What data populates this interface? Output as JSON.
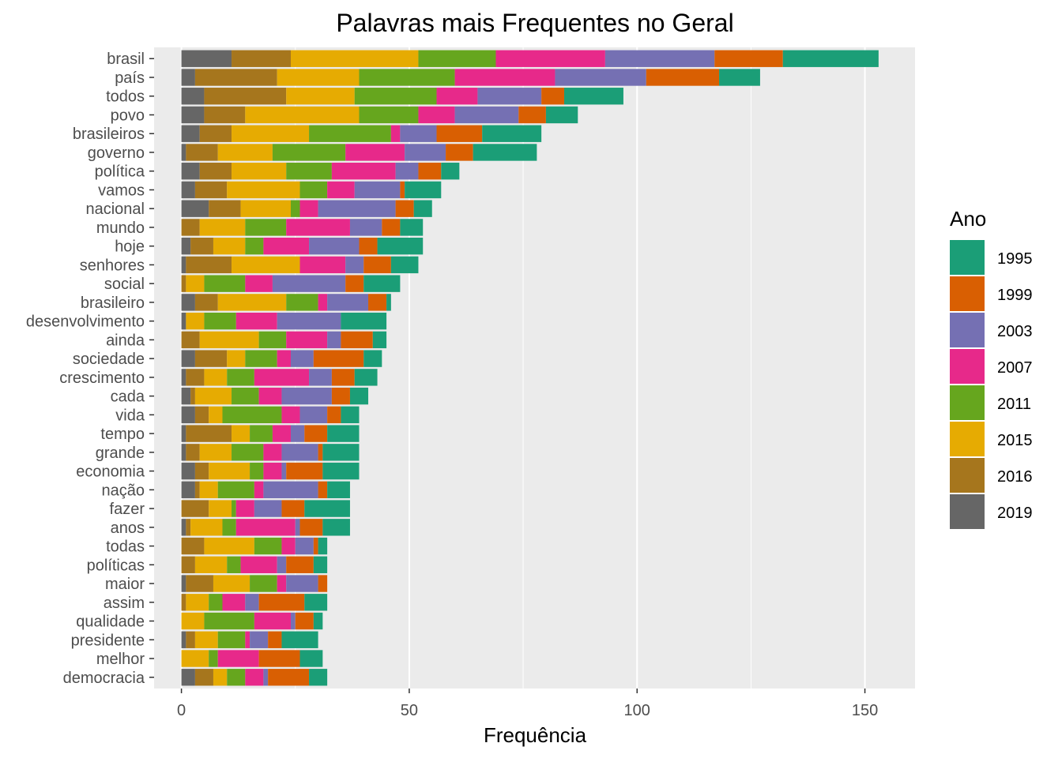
{
  "chart_data": {
    "type": "bar",
    "orientation": "horizontal",
    "stacked": true,
    "title": "Palavras mais Frequentes no Geral",
    "xlabel": "Frequência",
    "ylabel": "",
    "xlim": [
      -6,
      161
    ],
    "x_ticks": [
      0,
      50,
      100,
      150
    ],
    "grid": true,
    "legend": {
      "title": "Ano",
      "position": "right"
    },
    "categories": [
      "brasil",
      "país",
      "todos",
      "povo",
      "brasileiros",
      "governo",
      "política",
      "vamos",
      "nacional",
      "mundo",
      "hoje",
      "senhores",
      "social",
      "brasileiro",
      "desenvolvimento",
      "ainda",
      "sociedade",
      "crescimento",
      "cada",
      "vida",
      "tempo",
      "grande",
      "economia",
      "nação",
      "fazer",
      "anos",
      "todas",
      "políticas",
      "maior",
      "assim",
      "qualidade",
      "presidente",
      "melhor",
      "democracia"
    ],
    "series": [
      {
        "name": "2019",
        "color": "#666666",
        "values": [
          11,
          3,
          5,
          5,
          4,
          1,
          4,
          3,
          6,
          0,
          2,
          1,
          0,
          3,
          1,
          0,
          3,
          1,
          2,
          3,
          1,
          1,
          3,
          3,
          0,
          1,
          0,
          0,
          1,
          0,
          0,
          1,
          0,
          3
        ]
      },
      {
        "name": "2016",
        "color": "#A6761D",
        "values": [
          13,
          18,
          18,
          9,
          7,
          7,
          7,
          7,
          7,
          4,
          5,
          10,
          1,
          5,
          0,
          4,
          7,
          4,
          1,
          3,
          10,
          3,
          3,
          1,
          6,
          1,
          5,
          3,
          6,
          1,
          0,
          2,
          0,
          4
        ]
      },
      {
        "name": "2015",
        "color": "#E6AB02",
        "values": [
          28,
          18,
          15,
          25,
          17,
          12,
          12,
          16,
          11,
          10,
          7,
          15,
          4,
          15,
          4,
          13,
          4,
          5,
          8,
          3,
          4,
          7,
          9,
          4,
          5,
          7,
          11,
          7,
          8,
          5,
          5,
          5,
          6,
          3
        ]
      },
      {
        "name": "2011",
        "color": "#66A61E",
        "values": [
          17,
          21,
          18,
          13,
          18,
          16,
          10,
          6,
          2,
          9,
          4,
          0,
          9,
          7,
          7,
          6,
          7,
          6,
          6,
          13,
          5,
          7,
          3,
          8,
          1,
          3,
          6,
          3,
          6,
          3,
          11,
          6,
          2,
          4
        ]
      },
      {
        "name": "2007",
        "color": "#E7298A",
        "values": [
          24,
          22,
          9,
          8,
          2,
          13,
          14,
          6,
          4,
          14,
          10,
          10,
          6,
          2,
          9,
          9,
          3,
          12,
          5,
          4,
          4,
          4,
          4,
          2,
          4,
          13,
          3,
          8,
          2,
          5,
          8,
          1,
          9,
          4
        ]
      },
      {
        "name": "2003",
        "color": "#7570B3",
        "values": [
          24,
          20,
          14,
          14,
          8,
          9,
          5,
          10,
          17,
          7,
          11,
          4,
          16,
          9,
          14,
          3,
          5,
          5,
          11,
          6,
          3,
          8,
          1,
          12,
          6,
          1,
          4,
          2,
          7,
          3,
          1,
          4,
          0,
          1
        ]
      },
      {
        "name": "1999",
        "color": "#D95F02",
        "values": [
          15,
          16,
          5,
          6,
          10,
          6,
          5,
          1,
          4,
          4,
          4,
          6,
          4,
          4,
          0,
          7,
          11,
          5,
          4,
          3,
          5,
          1,
          8,
          2,
          5,
          5,
          1,
          6,
          2,
          10,
          4,
          3,
          9,
          9
        ]
      },
      {
        "name": "1995",
        "color": "#1B9E77",
        "values": [
          21,
          9,
          13,
          7,
          13,
          14,
          4,
          8,
          4,
          5,
          10,
          6,
          8,
          1,
          10,
          3,
          4,
          5,
          4,
          4,
          7,
          8,
          8,
          5,
          10,
          6,
          2,
          3,
          0,
          5,
          2,
          8,
          5,
          4
        ]
      }
    ],
    "legend_order": [
      "1995",
      "1999",
      "2003",
      "2007",
      "2011",
      "2015",
      "2016",
      "2019"
    ]
  }
}
